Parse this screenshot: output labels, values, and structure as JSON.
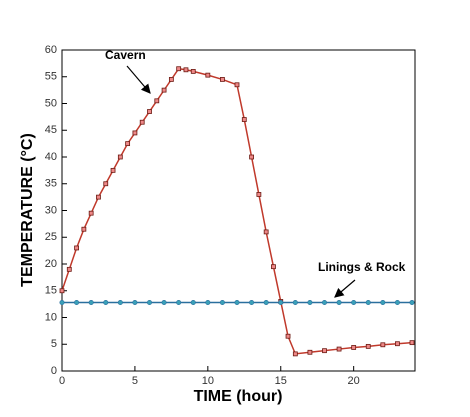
{
  "chart_data": {
    "type": "line",
    "xlabel": "TIME (hour)",
    "ylabel": "TEMPERATURE (°C)",
    "xlim": [
      0,
      24
    ],
    "ylim": [
      0,
      60
    ],
    "xticks": [
      0,
      5,
      10,
      15,
      20
    ],
    "yticks": [
      0,
      5,
      10,
      15,
      20,
      25,
      30,
      35,
      40,
      45,
      50,
      55,
      60
    ],
    "series": [
      {
        "name": "Cavern",
        "color": "#c0392b",
        "marker_color": "#6b1a12",
        "x": [
          0,
          0.5,
          1,
          1.5,
          2,
          2.5,
          3,
          3.5,
          4,
          4.5,
          5,
          5.5,
          6,
          6.5,
          7,
          7.5,
          8,
          8.5,
          9,
          10,
          11,
          12,
          12.5,
          13,
          13.5,
          14,
          14.5,
          15,
          15.5,
          16,
          17,
          18,
          19,
          20,
          21,
          22,
          23,
          24
        ],
        "values": [
          15,
          19,
          23,
          26.5,
          29.5,
          32.5,
          35,
          37.5,
          40,
          42.5,
          44.5,
          46.5,
          48.5,
          50.5,
          52.5,
          54.5,
          56.5,
          56.3,
          56,
          55.3,
          54.5,
          53.5,
          47,
          40,
          33,
          26,
          19.5,
          13,
          6.5,
          3.2,
          3.5,
          3.8,
          4.1,
          4.4,
          4.6,
          4.9,
          5.1,
          5.3
        ]
      },
      {
        "name": "Linings & Rock",
        "color": "#2a6f9e",
        "marker_color": "#3aa0b8",
        "x": [
          0,
          1,
          2,
          3,
          4,
          5,
          6,
          7,
          8,
          9,
          10,
          11,
          12,
          13,
          14,
          15,
          16,
          17,
          18,
          19,
          20,
          21,
          22,
          23,
          24
        ],
        "values": [
          12.8,
          12.8,
          12.8,
          12.8,
          12.8,
          12.8,
          12.8,
          12.8,
          12.8,
          12.8,
          12.8,
          12.8,
          12.8,
          12.8,
          12.8,
          12.8,
          12.8,
          12.8,
          12.8,
          12.8,
          12.8,
          12.8,
          12.8,
          12.8,
          12.8
        ]
      }
    ]
  }
}
